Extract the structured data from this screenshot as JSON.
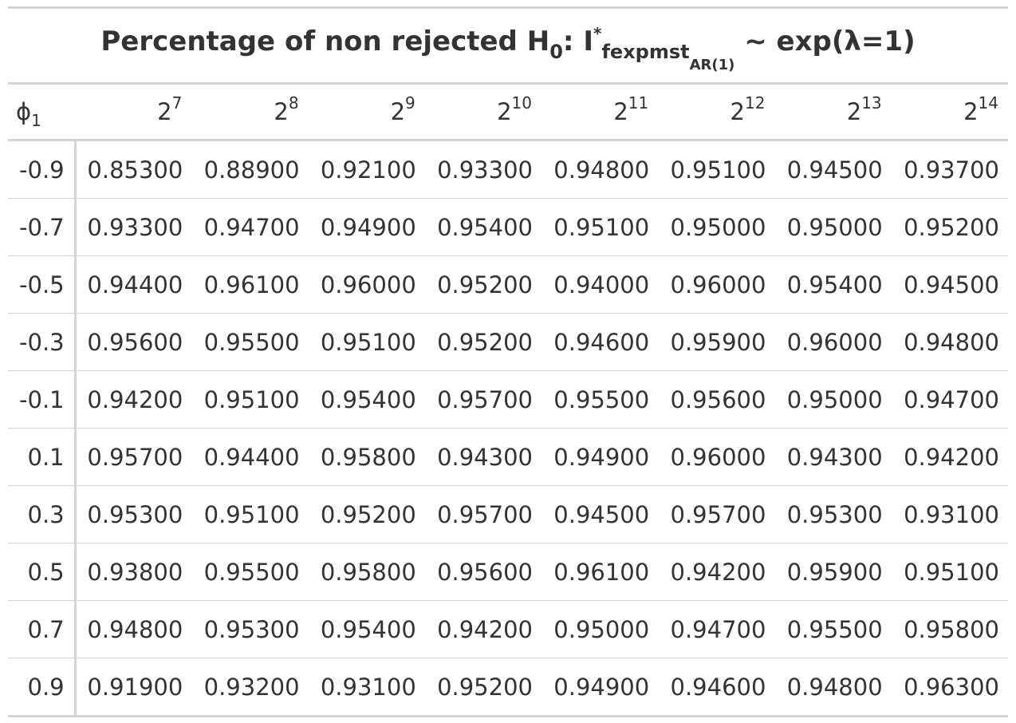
{
  "table": {
    "title": {
      "prefix": "Percentage of non rejected H",
      "h_sub": "0",
      "mid": ": I",
      "sup": "*",
      "sub_main": "fexpmst",
      "sub_sub": "AR(1)",
      "suffix": " ~ exp(λ=1)"
    },
    "stub_header": {
      "base": "ϕ",
      "sub": "1"
    },
    "columns": [
      {
        "base": "2",
        "exp": "7"
      },
      {
        "base": "2",
        "exp": "8"
      },
      {
        "base": "2",
        "exp": "9"
      },
      {
        "base": "2",
        "exp": "10"
      },
      {
        "base": "2",
        "exp": "11"
      },
      {
        "base": "2",
        "exp": "12"
      },
      {
        "base": "2",
        "exp": "13"
      },
      {
        "base": "2",
        "exp": "14"
      }
    ],
    "rows": [
      {
        "phi": "-0.9",
        "values": [
          "0.85300",
          "0.88900",
          "0.92100",
          "0.93300",
          "0.94800",
          "0.95100",
          "0.94500",
          "0.93700"
        ]
      },
      {
        "phi": "-0.7",
        "values": [
          "0.93300",
          "0.94700",
          "0.94900",
          "0.95400",
          "0.95100",
          "0.95000",
          "0.95000",
          "0.95200"
        ]
      },
      {
        "phi": "-0.5",
        "values": [
          "0.94400",
          "0.96100",
          "0.96000",
          "0.95200",
          "0.94000",
          "0.96000",
          "0.95400",
          "0.94500"
        ]
      },
      {
        "phi": "-0.3",
        "values": [
          "0.95600",
          "0.95500",
          "0.95100",
          "0.95200",
          "0.94600",
          "0.95900",
          "0.96000",
          "0.94800"
        ]
      },
      {
        "phi": "-0.1",
        "values": [
          "0.94200",
          "0.95100",
          "0.95400",
          "0.95700",
          "0.95500",
          "0.95600",
          "0.95000",
          "0.94700"
        ]
      },
      {
        "phi": "0.1",
        "values": [
          "0.95700",
          "0.94400",
          "0.95800",
          "0.94300",
          "0.94900",
          "0.96000",
          "0.94300",
          "0.94200"
        ]
      },
      {
        "phi": "0.3",
        "values": [
          "0.95300",
          "0.95100",
          "0.95200",
          "0.95700",
          "0.94500",
          "0.95700",
          "0.95300",
          "0.93100"
        ]
      },
      {
        "phi": "0.5",
        "values": [
          "0.93800",
          "0.95500",
          "0.95800",
          "0.95600",
          "0.96100",
          "0.94200",
          "0.95900",
          "0.95100"
        ]
      },
      {
        "phi": "0.7",
        "values": [
          "0.94800",
          "0.95300",
          "0.95400",
          "0.94200",
          "0.95000",
          "0.94700",
          "0.95500",
          "0.95800"
        ]
      },
      {
        "phi": "0.9",
        "values": [
          "0.91900",
          "0.93200",
          "0.93100",
          "0.95200",
          "0.94900",
          "0.94600",
          "0.94800",
          "0.96300"
        ]
      }
    ]
  }
}
